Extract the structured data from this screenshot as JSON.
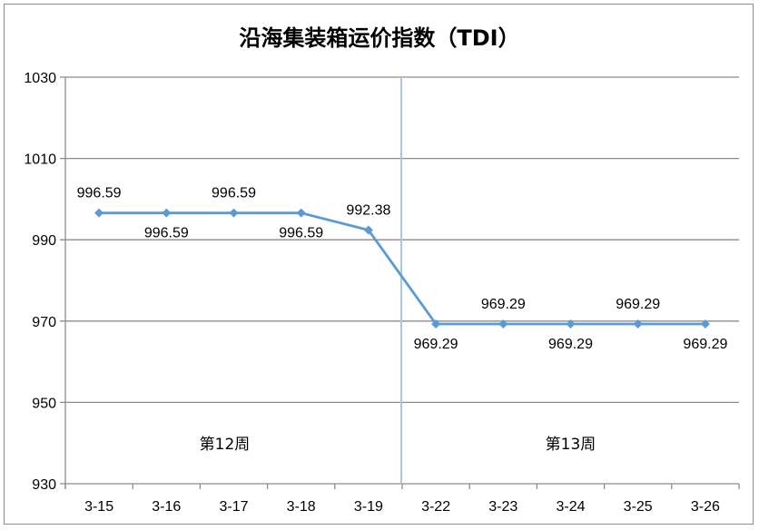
{
  "chart_data": {
    "type": "line",
    "title": "沿海集装箱运价指数（TDI）",
    "xlabel": "",
    "ylabel": "",
    "ylim": [
      930,
      1030
    ],
    "yticks": [
      "930",
      "950",
      "970",
      "990",
      "1010",
      "1030"
    ],
    "categories": [
      "3-15",
      "3-16",
      "3-17",
      "3-18",
      "3-19",
      "3-22",
      "3-23",
      "3-24",
      "3-25",
      "3-26"
    ],
    "series": [
      {
        "color": "#5b9bd5",
        "values": [
          996.59,
          996.59,
          996.59,
          996.59,
          992.38,
          969.29,
          969.29,
          969.29,
          969.29,
          969.29
        ],
        "labels": [
          "996.59",
          "996.59",
          "996.59",
          "996.59",
          "992.38",
          "969.29",
          "969.29",
          "969.29",
          "969.29",
          "969.29"
        ],
        "label_positions": [
          "above",
          "below",
          "above",
          "below",
          "above",
          "below",
          "above",
          "below",
          "above",
          "below"
        ]
      }
    ],
    "annotations": [
      {
        "text": "第12周",
        "x_range": [
          0,
          4
        ]
      },
      {
        "text": "第13周",
        "x_range": [
          5,
          9
        ]
      }
    ],
    "separator_after_index": 4,
    "separator_color": "#a9c6e8",
    "grid": true,
    "legend": "none"
  }
}
